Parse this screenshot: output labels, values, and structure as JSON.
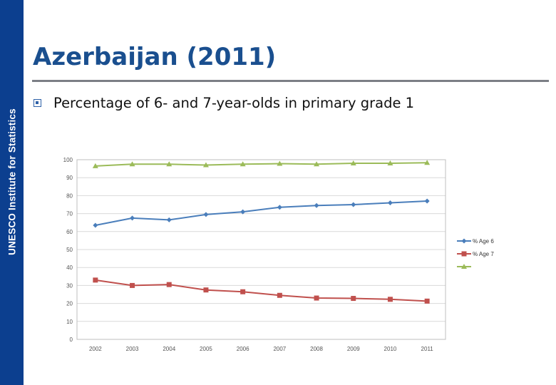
{
  "sidebar": {
    "label": "UNESCO Institute for Statistics",
    "color": "#0c3f8f"
  },
  "slide": {
    "title": "Azerbaijan (2011)",
    "bullet": "Percentage of 6- and 7-year-olds in primary grade 1"
  },
  "chart_data": {
    "type": "line",
    "categories": [
      "2002",
      "2003",
      "2004",
      "2005",
      "2006",
      "2007",
      "2008",
      "2009",
      "2010",
      "2011"
    ],
    "series": [
      {
        "name": "% Age 6",
        "color": "#4a7ebb",
        "marker": "diamond",
        "values": [
          63.5,
          67.5,
          66.5,
          69.5,
          71,
          73.5,
          74.5,
          75,
          76,
          77
        ]
      },
      {
        "name": "% Age 7",
        "color": "#c0504d",
        "marker": "square",
        "values": [
          33,
          30,
          30.5,
          27.5,
          26.5,
          24.5,
          23,
          22.8,
          22.3,
          21.3
        ]
      },
      {
        "name": "",
        "color": "#9bbb59",
        "marker": "triangle",
        "values": [
          96.5,
          97.5,
          97.5,
          97,
          97.5,
          97.8,
          97.5,
          98,
          98,
          98.3
        ]
      }
    ],
    "ylim": [
      0,
      100
    ],
    "yticks": [
      0,
      10,
      20,
      30,
      40,
      50,
      60,
      70,
      80,
      90,
      100
    ],
    "grid": true,
    "legend": "right"
  }
}
